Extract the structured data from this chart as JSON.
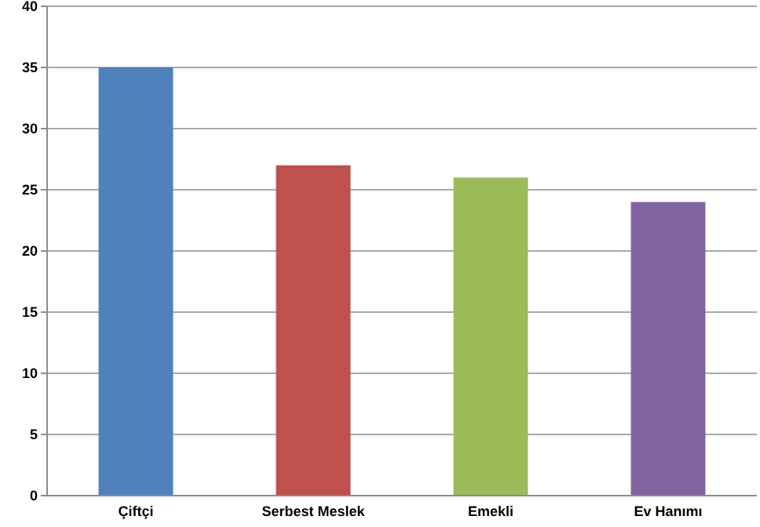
{
  "chart_data": {
    "type": "bar",
    "categories": [
      "Çiftçi",
      "Serbest Meslek",
      "Emekli",
      "Ev Hanımı"
    ],
    "values": [
      35,
      27,
      26,
      24
    ],
    "colors": [
      "#4f81bd",
      "#c0504d",
      "#9bbb59",
      "#8064a2"
    ],
    "ylim": [
      0,
      40
    ],
    "yticks": [
      0,
      5,
      10,
      15,
      20,
      25,
      30,
      35,
      40
    ],
    "grid": "y"
  }
}
